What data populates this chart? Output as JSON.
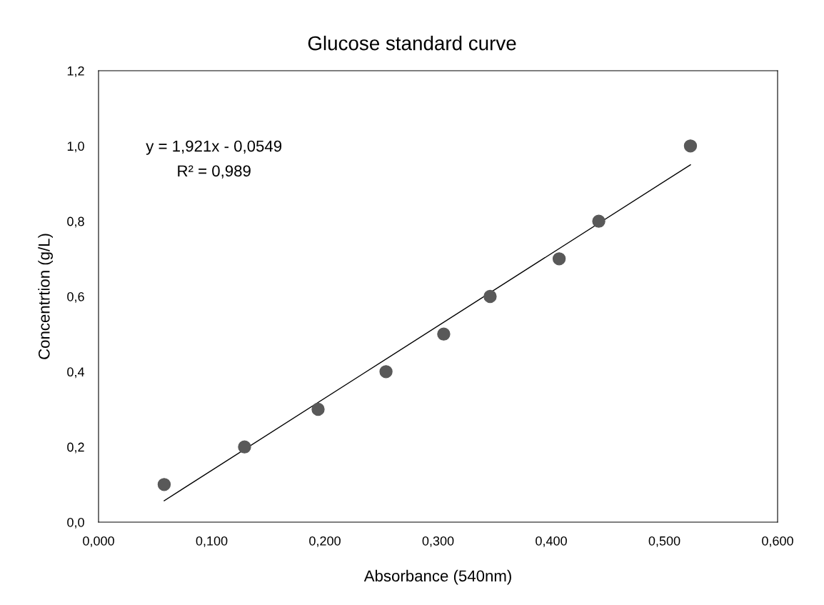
{
  "chart_data": {
    "type": "scatter",
    "title": "Glucose standard curve",
    "xlabel": "Absorbance (540nm)",
    "ylabel": "Concentrtion (g/L)",
    "x": [
      0.058,
      0.129,
      0.194,
      0.254,
      0.305,
      0.346,
      0.407,
      0.442,
      0.523
    ],
    "series": [
      {
        "color": "#595959",
        "marker": "circle",
        "values": [
          0.1,
          0.2,
          0.3,
          0.4,
          0.5,
          0.6,
          0.7,
          0.8,
          1.0
        ]
      },
      {
        "type": "line",
        "color": "#000000",
        "marker": "none",
        "line_style": "solid",
        "x": [
          0.058,
          0.523
        ],
        "values": [
          0.057,
          0.95
        ]
      }
    ],
    "annotations": [
      "y = 1,921x - 0,0549",
      "R² = 0,989"
    ],
    "xlim": [
      0,
      0.6
    ],
    "ylim": [
      0,
      1.2
    ],
    "xticks": [
      {
        "value": 0,
        "label": "0,000"
      },
      {
        "value": 0.1,
        "label": "0,100"
      },
      {
        "value": 0.2,
        "label": "0,200"
      },
      {
        "value": 0.3,
        "label": "0,300"
      },
      {
        "value": 0.4,
        "label": "0,400"
      },
      {
        "value": 0.5,
        "label": "0,500"
      },
      {
        "value": 0.6,
        "label": "0,600"
      }
    ],
    "yticks": [
      {
        "value": 0,
        "label": "0,0"
      },
      {
        "value": 0.2,
        "label": "0,2"
      },
      {
        "value": 0.4,
        "label": "0,4"
      },
      {
        "value": 0.6,
        "label": "0,6"
      },
      {
        "value": 0.8,
        "label": "0,8"
      },
      {
        "value": 1.0,
        "label": "1,0"
      },
      {
        "value": 1.2,
        "label": "1,2"
      }
    ],
    "grid": false,
    "legend": false
  }
}
